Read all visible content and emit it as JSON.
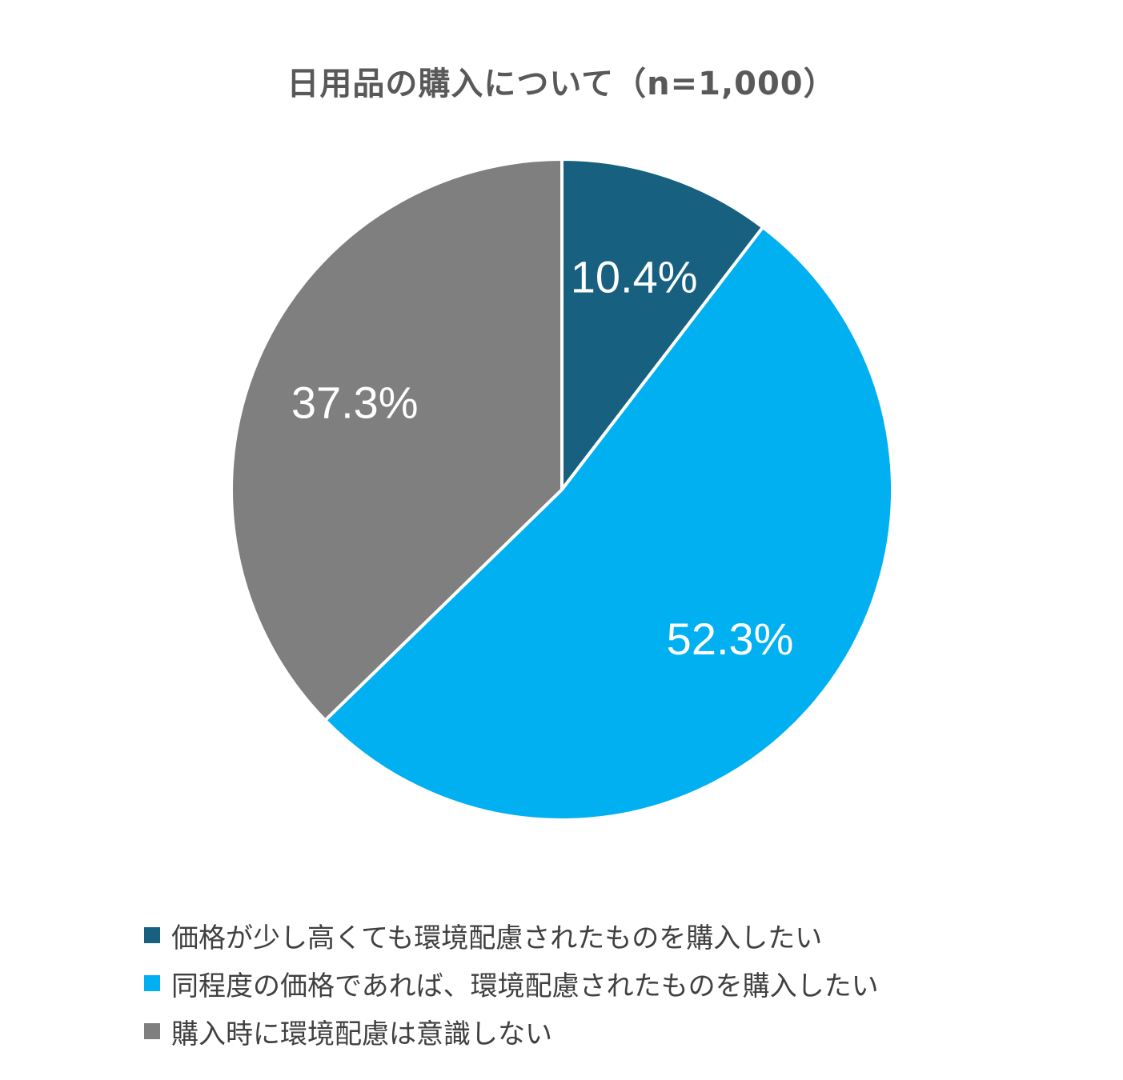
{
  "chart_data": {
    "type": "pie",
    "title": "日用品の購入について（n=1,000）",
    "slices": [
      {
        "label": "価格が少し高くても環境配慮されたものを購入したい",
        "value": 10.4,
        "value_label": "10.4%",
        "color": "#17607f"
      },
      {
        "label": "同程度の価格であれば、環境配慮されたものを購入したい",
        "value": 52.3,
        "value_label": "52.3%",
        "color": "#00b0f0"
      },
      {
        "label": "購入時に環境配慮は意識しない",
        "value": 37.3,
        "value_label": "37.3%",
        "color": "#7f7f7f"
      }
    ],
    "start_angle": "12 o'clock",
    "direction": "clockwise",
    "legend_position": "bottom"
  }
}
